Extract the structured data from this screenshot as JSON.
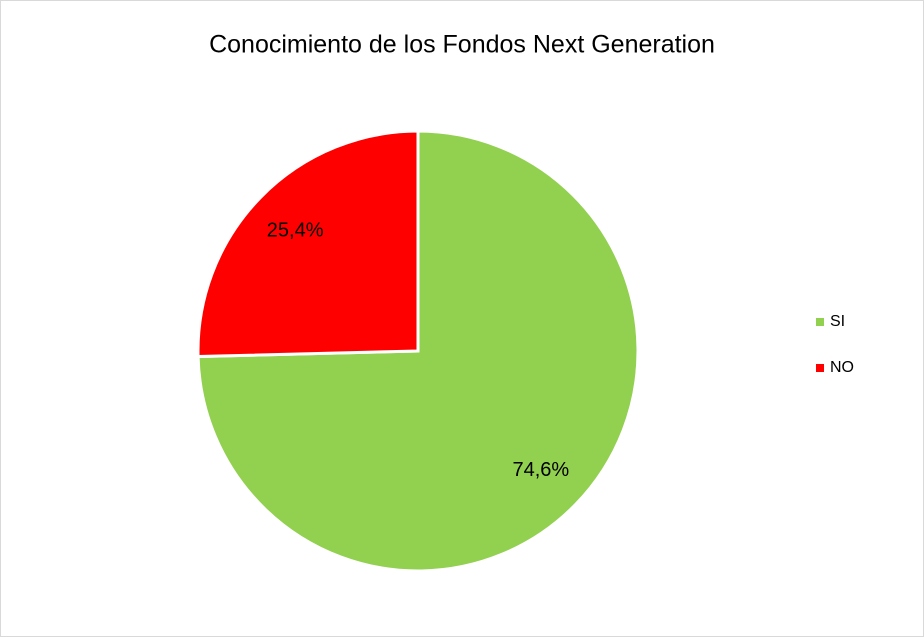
{
  "chart_data": {
    "type": "pie",
    "title": "Conocimiento de los Fondos Next Generation",
    "categories": [
      "SI",
      "NO"
    ],
    "values": [
      74.6,
      25.4
    ],
    "value_labels": [
      "74,6%",
      "25,4%"
    ],
    "colors": [
      "#92d050",
      "#ff0000"
    ],
    "legend": "right"
  }
}
